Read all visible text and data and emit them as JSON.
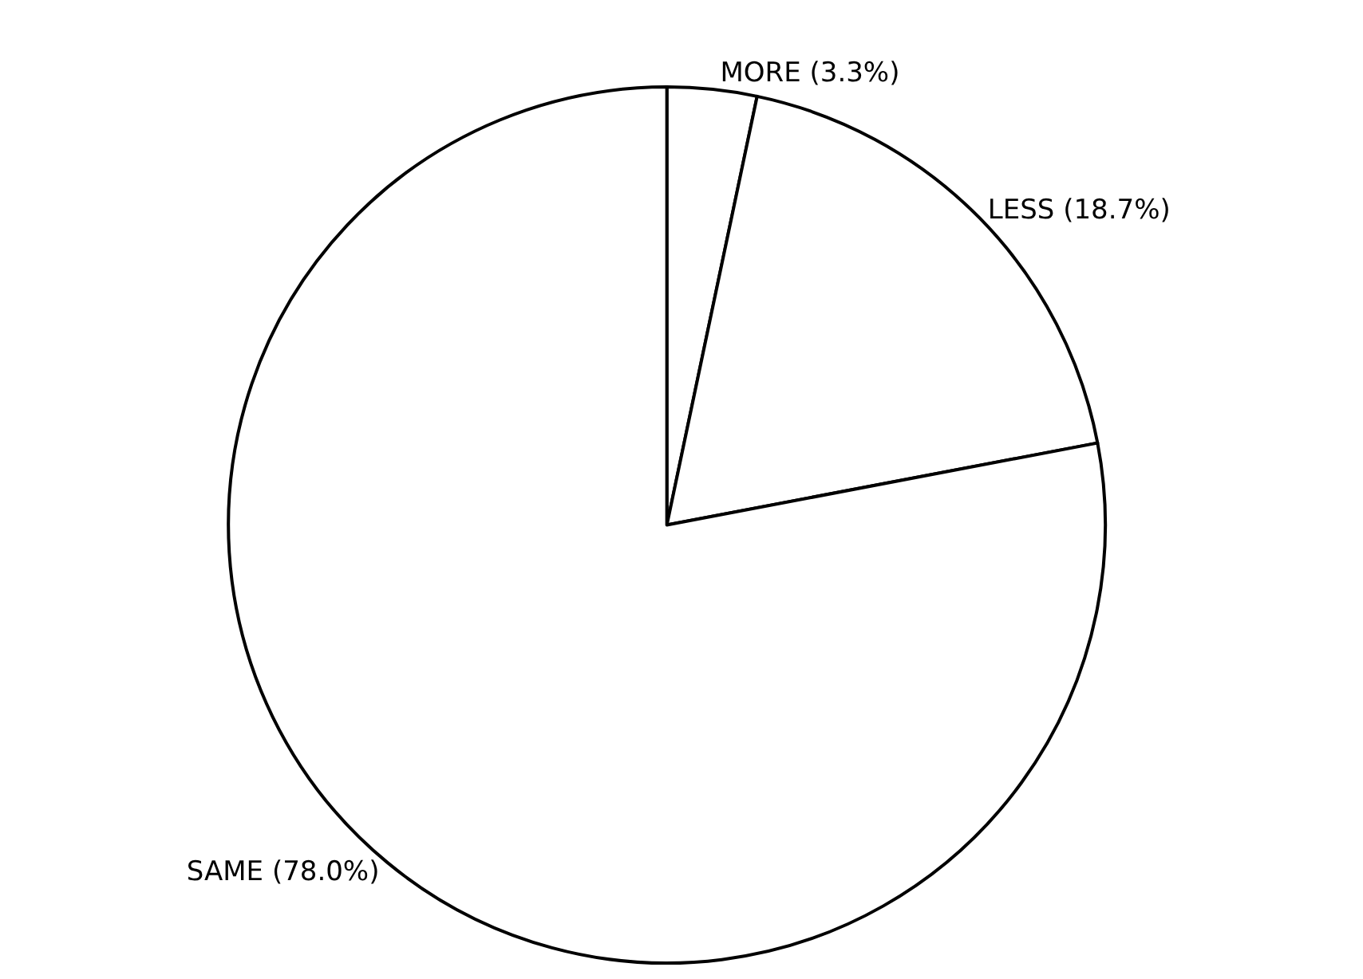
{
  "chart_data": {
    "type": "pie",
    "categories": [
      "MORE (3.3%)",
      "LESS (18.7%)",
      "SAME (78.0%)"
    ],
    "values": [
      3.3,
      18.7,
      78.0
    ],
    "colors": [
      "#ffffff",
      "#ffffff",
      "#ffffff"
    ]
  }
}
